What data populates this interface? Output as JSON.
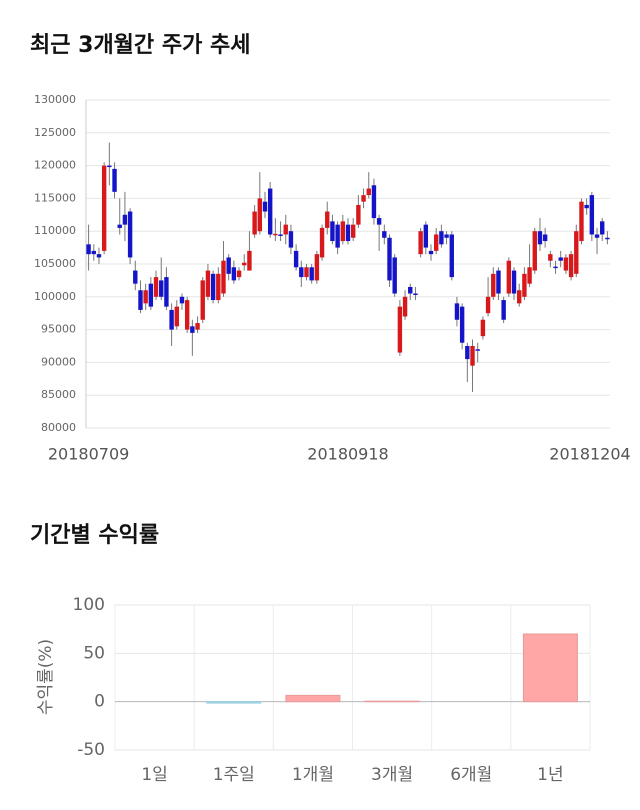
{
  "chart_data": [
    {
      "type": "candlestick",
      "title": "최근 3개월간 주가 추세",
      "categories": [
        "20180709",
        null,
        null,
        null,
        null,
        null,
        null,
        null,
        null,
        null,
        null,
        null,
        null,
        null,
        null,
        null,
        null,
        null,
        null,
        null,
        null,
        null,
        null,
        null,
        null,
        null,
        null,
        null,
        null,
        null,
        null,
        null,
        null,
        null,
        null,
        null,
        null,
        null,
        null,
        null,
        null,
        null,
        null,
        null,
        null,
        null,
        null,
        null,
        null,
        null,
        "20180918",
        null,
        null,
        null,
        null,
        null,
        null,
        null,
        null,
        null,
        null,
        null,
        null,
        null,
        null,
        null,
        null,
        null,
        null,
        null,
        null,
        null,
        null,
        null,
        null,
        null,
        null,
        null,
        null,
        null,
        null,
        null,
        null,
        null,
        null,
        null,
        null,
        null,
        null,
        null,
        null,
        null,
        null,
        null,
        null,
        null,
        null,
        null,
        null,
        null,
        "20181204"
      ],
      "open": [
        108000,
        107000,
        106500,
        107000,
        120000,
        119500,
        111000,
        112500,
        113000,
        104000,
        101000,
        99000,
        102000,
        100000,
        102500,
        103000,
        98000,
        95500,
        100000,
        95000,
        95500,
        95000,
        96500,
        100000,
        103500,
        99500,
        100500,
        106000,
        104500,
        103000,
        104800,
        104000,
        109500,
        110000,
        114500,
        116500,
        109500,
        109500,
        109500,
        110000,
        107000,
        104500,
        103000,
        104500,
        102500,
        106000,
        110500,
        111500,
        111000,
        108500,
        111000,
        109000,
        111000,
        114500,
        115500,
        117000,
        112000,
        110000,
        109000,
        106000,
        91500,
        97000,
        101500,
        100500,
        106500,
        111000,
        107000,
        107000,
        110000,
        109500,
        109500,
        99000,
        98500,
        92500,
        89500,
        92000,
        94000,
        97500,
        100000,
        104000,
        99500,
        100500,
        104000,
        99000,
        100000,
        102000,
        104000,
        110000,
        109500,
        105500,
        104600,
        106000,
        104000,
        103000,
        103500,
        108500,
        114000,
        115500,
        109500,
        111500,
        109000
      ],
      "high": [
        111000,
        108000,
        107500,
        120500,
        123500,
        120500,
        115000,
        116000,
        113500,
        105500,
        102500,
        102000,
        103000,
        104000,
        106000,
        104500,
        99000,
        99500,
        100500,
        100000,
        96500,
        97000,
        103000,
        105000,
        104000,
        104500,
        108500,
        106500,
        105500,
        104500,
        106500,
        110000,
        114000,
        119000,
        116000,
        117500,
        112000,
        111500,
        112500,
        111000,
        108000,
        105500,
        105000,
        105000,
        107000,
        111000,
        114500,
        112500,
        111500,
        112500,
        112000,
        112000,
        115500,
        116500,
        119000,
        118000,
        112500,
        111000,
        109500,
        106500,
        99500,
        101000,
        102000,
        101500,
        110500,
        111500,
        108000,
        110500,
        111000,
        110000,
        110000,
        100000,
        99000,
        93000,
        93500,
        93000,
        97000,
        103000,
        104500,
        104500,
        100000,
        106000,
        104500,
        102000,
        104500,
        108000,
        110500,
        112000,
        110500,
        107000,
        105500,
        107000,
        106500,
        107000,
        111000,
        115000,
        115000,
        116000,
        110500,
        112000,
        110000
      ],
      "low": [
        104000,
        105500,
        105000,
        106500,
        117000,
        115000,
        109500,
        108500,
        105000,
        101000,
        97500,
        98000,
        98000,
        99500,
        99500,
        98000,
        92500,
        95000,
        98000,
        94500,
        91000,
        94500,
        96000,
        99500,
        99000,
        99000,
        100000,
        102500,
        102000,
        102500,
        104000,
        104000,
        109000,
        109500,
        112000,
        109000,
        108500,
        108500,
        108000,
        106500,
        104000,
        101500,
        102500,
        102000,
        102000,
        105500,
        109500,
        108000,
        106500,
        108000,
        108000,
        108500,
        110500,
        113500,
        115000,
        111000,
        107000,
        108000,
        101500,
        100000,
        91000,
        96500,
        99500,
        99500,
        106000,
        106500,
        105500,
        106500,
        107500,
        108000,
        102500,
        95500,
        92000,
        87000,
        85500,
        90000,
        93500,
        97000,
        99500,
        99500,
        96000,
        100000,
        99500,
        98500,
        99500,
        101500,
        103500,
        107000,
        107500,
        104500,
        103500,
        104500,
        103500,
        102500,
        103000,
        108000,
        112500,
        108500,
        106500,
        108500,
        108000
      ],
      "close": [
        106500,
        106500,
        106000,
        120000,
        119800,
        116000,
        110500,
        111000,
        106000,
        102000,
        98000,
        101000,
        98500,
        103000,
        100000,
        98500,
        95000,
        98500,
        99000,
        99500,
        94500,
        96000,
        102500,
        104000,
        99500,
        103500,
        105500,
        103500,
        102500,
        104000,
        105200,
        107000,
        113000,
        115000,
        113000,
        109500,
        109600,
        109400,
        111000,
        107500,
        104500,
        103000,
        104500,
        102500,
        106500,
        110500,
        113000,
        108500,
        107500,
        111500,
        108500,
        111000,
        114000,
        115500,
        116500,
        112000,
        111000,
        109000,
        102500,
        100500,
        98500,
        100000,
        100500,
        100400,
        110000,
        107500,
        106500,
        109500,
        108000,
        109000,
        103000,
        96500,
        93000,
        90500,
        92500,
        91900,
        96500,
        100000,
        103500,
        100500,
        96500,
        105500,
        100500,
        101000,
        103500,
        104500,
        110000,
        108000,
        108500,
        106500,
        104400,
        105500,
        106000,
        106500,
        110000,
        114500,
        113500,
        109500,
        109000,
        109500,
        108800
      ],
      "up_color": "#d7191c",
      "down_color": "#1414c8",
      "ylim": [
        80000,
        130000
      ],
      "yticks": [
        80000,
        85000,
        90000,
        95000,
        100000,
        105000,
        110000,
        115000,
        120000,
        125000,
        130000
      ],
      "grid": true
    },
    {
      "type": "bar",
      "title": "기간별 수익률",
      "ylabel": "수익률(%)",
      "categories": [
        "1일",
        "1주일",
        "1개월",
        "3개월",
        "6개월",
        "1년"
      ],
      "values": [
        0,
        -1.5,
        6.5,
        0.5,
        0,
        70
      ],
      "positive_color": "#ffa6a6",
      "negative_color": "#a9dbee",
      "ylim": [
        -50,
        100
      ],
      "yticks": [
        -50,
        0,
        50,
        100
      ],
      "grid": true
    }
  ]
}
